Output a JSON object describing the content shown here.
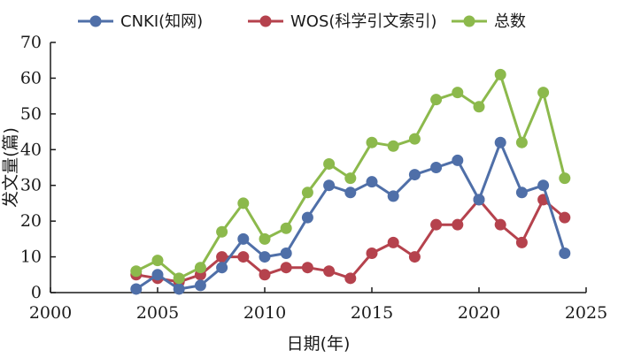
{
  "chart_data": {
    "type": "line",
    "xlabel": "日期(年)",
    "ylabel": "发文量(篇)",
    "xlim": [
      2000,
      2025
    ],
    "ylim": [
      0,
      70
    ],
    "x_ticks": [
      2000,
      2005,
      2010,
      2015,
      2020,
      2025
    ],
    "y_ticks": [
      0,
      10,
      20,
      30,
      40,
      50,
      60,
      70
    ],
    "grid": false,
    "legend_position": "top",
    "x": [
      2004,
      2005,
      2006,
      2007,
      2008,
      2009,
      2010,
      2011,
      2012,
      2013,
      2014,
      2015,
      2016,
      2017,
      2018,
      2019,
      2020,
      2021,
      2022,
      2023,
      2024
    ],
    "series": [
      {
        "name": "CNKI(知网)",
        "color": "#4f6fa8",
        "values": [
          1,
          5,
          1,
          2,
          7,
          15,
          10,
          11,
          21,
          30,
          28,
          31,
          27,
          33,
          35,
          37,
          26,
          42,
          28,
          30,
          11
        ]
      },
      {
        "name": "WOS(科学引文索引)",
        "color": "#b5424d",
        "values": [
          5,
          4,
          3,
          5,
          10,
          10,
          5,
          7,
          7,
          6,
          4,
          11,
          14,
          10,
          19,
          19,
          26,
          19,
          14,
          26,
          21
        ]
      },
      {
        "name": "总数",
        "color": "#8cb94c",
        "values": [
          6,
          9,
          4,
          7,
          17,
          25,
          15,
          18,
          28,
          36,
          32,
          42,
          41,
          43,
          54,
          56,
          52,
          61,
          42,
          56,
          32
        ]
      }
    ]
  }
}
